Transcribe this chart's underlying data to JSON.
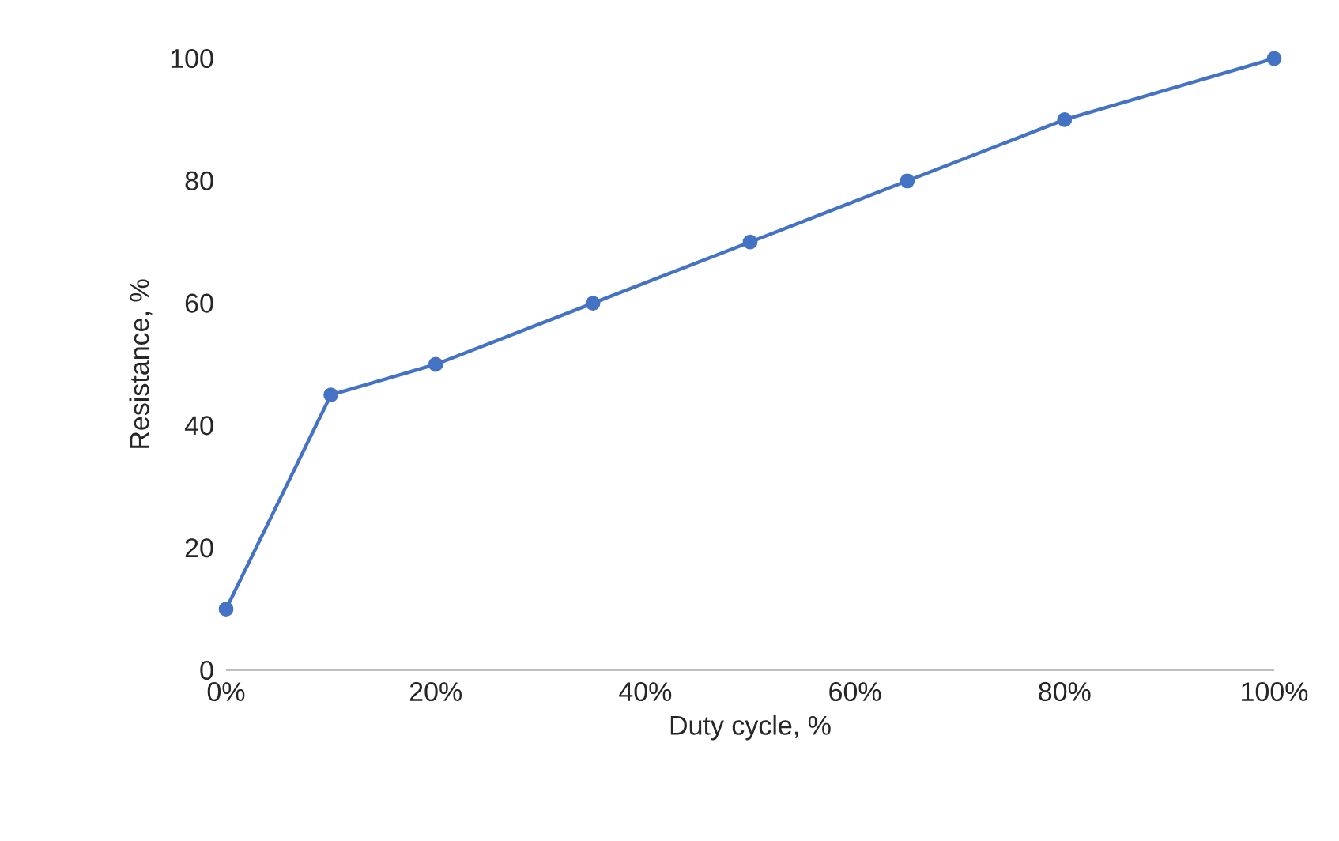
{
  "chart_data": {
    "type": "line",
    "xlabel": "Duty cycle, %",
    "ylabel": "Resistance, %",
    "x": [
      0,
      10,
      20,
      35,
      50,
      65,
      80,
      100
    ],
    "series": [
      {
        "color": "#4472c4",
        "values": [
          10,
          45,
          50,
          60,
          70,
          80,
          90,
          100
        ]
      }
    ],
    "xlim": [
      0,
      100
    ],
    "xticks": [
      {
        "value": 0,
        "label": "0%"
      },
      {
        "value": 20,
        "label": "20%"
      },
      {
        "value": 40,
        "label": "40%"
      },
      {
        "value": 60,
        "label": "60%"
      },
      {
        "value": 80,
        "label": "80%"
      },
      {
        "value": 100,
        "label": "100%"
      }
    ],
    "ylim": [
      0,
      100
    ],
    "yticks": [
      0,
      20,
      40,
      60,
      80,
      100
    ],
    "grid": false,
    "marker": "circle",
    "line_style": "solid"
  }
}
